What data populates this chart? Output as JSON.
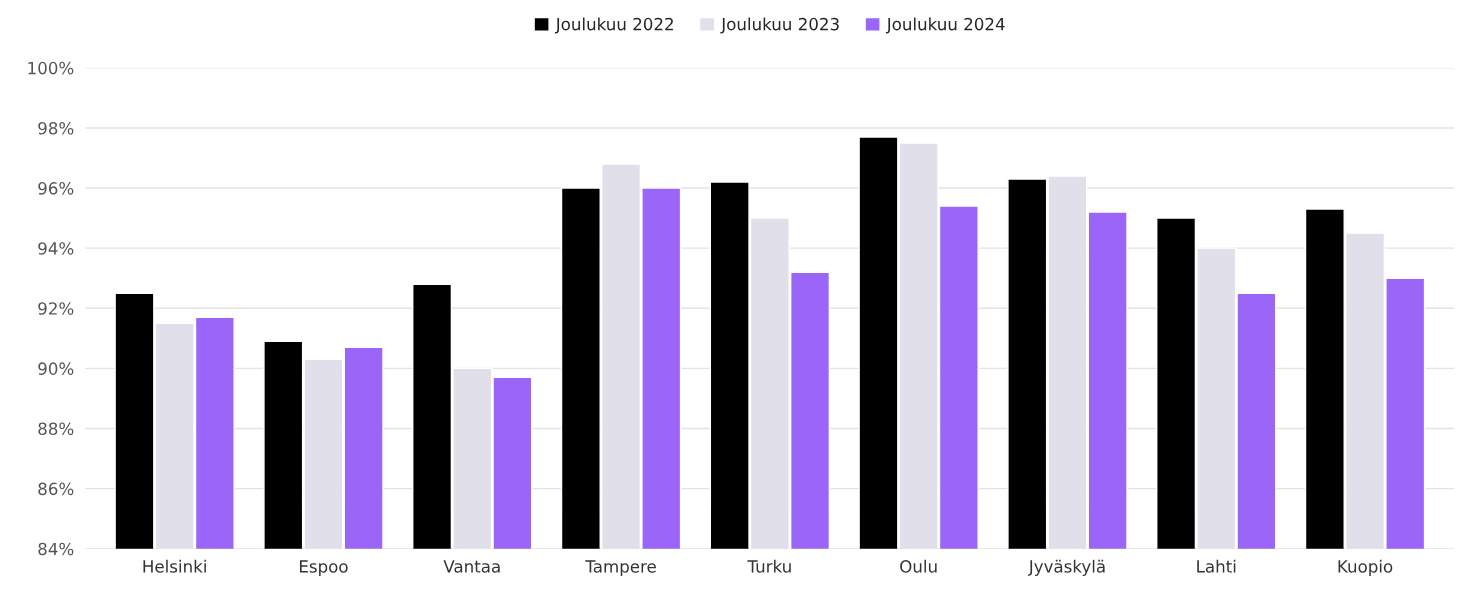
{
  "chart_data": {
    "type": "bar",
    "categories": [
      "Helsinki",
      "Espoo",
      "Vantaa",
      "Tampere",
      "Turku",
      "Oulu",
      "Jyväskylä",
      "Lahti",
      "Kuopio"
    ],
    "series": [
      {
        "name": "Joulukuu 2022",
        "color": "#000000",
        "values": [
          92.5,
          90.9,
          92.8,
          96.0,
          96.2,
          97.7,
          96.3,
          95.0,
          95.3
        ]
      },
      {
        "name": "Joulukuu 2023",
        "color": "#e0dfea",
        "values": [
          91.5,
          90.3,
          90.0,
          96.8,
          95.0,
          97.5,
          96.4,
          94.0,
          94.5
        ]
      },
      {
        "name": "Joulukuu 2024",
        "color": "#9b66f7",
        "values": [
          91.7,
          90.7,
          89.7,
          96.0,
          93.2,
          95.4,
          95.2,
          92.5,
          93.0
        ]
      }
    ],
    "ylim": [
      84,
      100
    ],
    "yticks": [
      {
        "value": 84,
        "label": "84%"
      },
      {
        "value": 86,
        "label": "86%"
      },
      {
        "value": 88,
        "label": "88%"
      },
      {
        "value": 90,
        "label": "90%"
      },
      {
        "value": 92,
        "label": "92%"
      },
      {
        "value": 94,
        "label": "94%"
      },
      {
        "value": 96,
        "label": "96%"
      },
      {
        "value": 98,
        "label": "98%"
      },
      {
        "value": 100,
        "label": "100%"
      }
    ],
    "grid": "y",
    "legend": "top"
  }
}
